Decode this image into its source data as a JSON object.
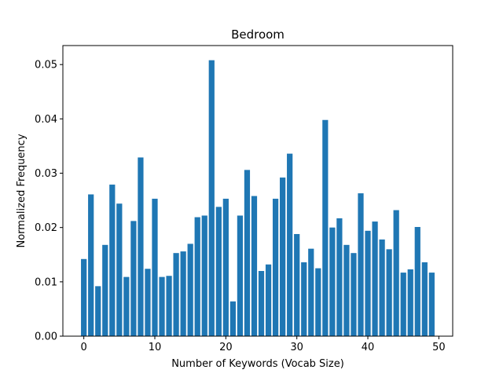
{
  "chart_data": {
    "type": "bar",
    "title": "Bedroom",
    "xlabel": "Number of Keywords (Vocab Size)",
    "ylabel": "Normalized Frequency",
    "x": [
      0,
      1,
      2,
      3,
      4,
      5,
      6,
      7,
      8,
      9,
      10,
      11,
      12,
      13,
      14,
      15,
      16,
      17,
      18,
      19,
      20,
      21,
      22,
      23,
      24,
      25,
      26,
      27,
      28,
      29,
      30,
      31,
      32,
      33,
      34,
      35,
      36,
      37,
      38,
      39,
      40,
      41,
      42,
      43,
      44,
      45,
      46,
      47,
      48,
      49
    ],
    "values": [
      0.0142,
      0.0261,
      0.0092,
      0.0168,
      0.0279,
      0.0244,
      0.0109,
      0.0212,
      0.0329,
      0.0124,
      0.0253,
      0.0109,
      0.0111,
      0.0153,
      0.0156,
      0.017,
      0.0219,
      0.0222,
      0.0508,
      0.0238,
      0.0253,
      0.0064,
      0.0222,
      0.0306,
      0.0258,
      0.012,
      0.0132,
      0.0253,
      0.0292,
      0.0336,
      0.0188,
      0.0136,
      0.0161,
      0.0125,
      0.0398,
      0.02,
      0.0217,
      0.0168,
      0.0153,
      0.0263,
      0.0194,
      0.0211,
      0.0178,
      0.016,
      0.0232,
      0.0117,
      0.0123,
      0.0201,
      0.0136,
      0.0117
    ],
    "xlim": [
      -2.95,
      51.95
    ],
    "ylim": [
      0,
      0.0535
    ],
    "xticks": [
      0,
      10,
      20,
      30,
      40,
      50
    ],
    "xtick_labels": [
      "0",
      "10",
      "20",
      "30",
      "40",
      "50"
    ],
    "yticks": [
      0,
      0.01,
      0.02,
      0.03,
      0.04,
      0.05
    ],
    "ytick_labels": [
      "0.00",
      "0.01",
      "0.02",
      "0.03",
      "0.04",
      "0.05"
    ],
    "bar_color": "#1f77b4",
    "grid": false
  }
}
